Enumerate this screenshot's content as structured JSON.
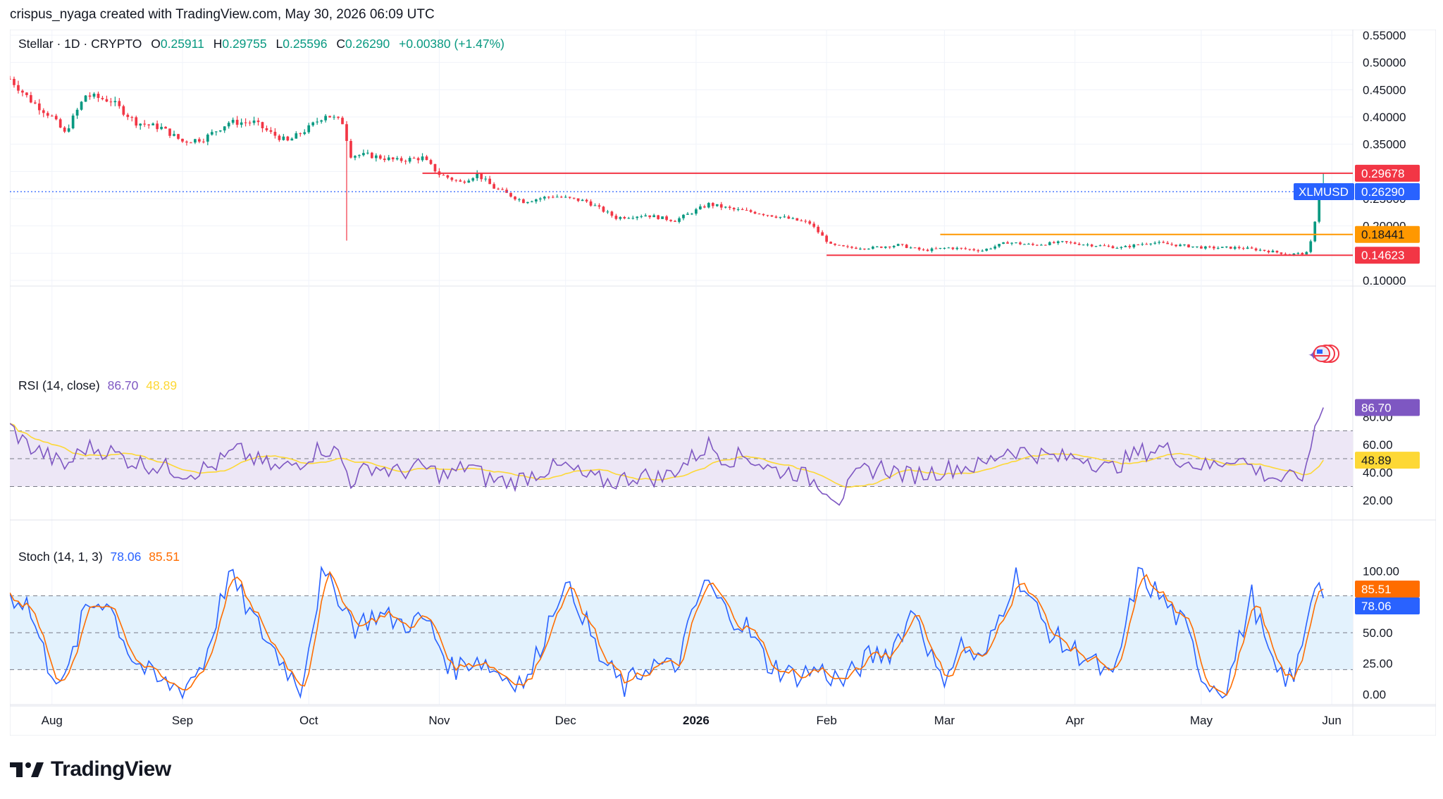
{
  "header": {
    "text": "crispus_nyaga created with TradingView.com, May 30, 2026 06:09 UTC"
  },
  "legend": {
    "symbol": "Stellar · 1D · CRYPTO",
    "o_label": "O",
    "o_value": "0.25911",
    "h_label": "H",
    "h_value": "0.29755",
    "l_label": "L",
    "l_value": "0.25596",
    "c_label": "C",
    "c_value": "0.26290",
    "change": "+0.00380 (+1.47%)"
  },
  "logo": {
    "text": "TradingView",
    "icon": "tradingview-logo-icon"
  },
  "colors": {
    "up": "#089981",
    "down": "#f23645",
    "rsi": "#7e57c2",
    "rsi_ma": "#fdd835",
    "stoch_k": "#2962ff",
    "stoch_d": "#ff6d00",
    "orange_level": "#ff9800",
    "price_badge": "#2962ff",
    "rsi_band": "#ede7f6",
    "stoch_band": "#e3f2fd"
  },
  "chart_data": [
    {
      "type": "candlestick",
      "title": "Stellar · 1D · CRYPTO",
      "symbol": "XLMUSD",
      "ylim": [
        0.1,
        0.55
      ],
      "y_ticks": [
        "0.55000",
        "0.50000",
        "0.45000",
        "0.40000",
        "0.35000",
        "0.30000",
        "0.25000",
        "0.20000",
        "0.15000",
        "0.10000"
      ],
      "x_ticks": [
        "Aug",
        "Sep",
        "Oct",
        "Nov",
        "Dec",
        "2026",
        "Feb",
        "Mar",
        "Apr",
        "May",
        "Jun"
      ],
      "anchor_points": [
        [
          "2025-07-22",
          0.47
        ],
        [
          "2025-07-27",
          0.43
        ],
        [
          "2025-08-01",
          0.4
        ],
        [
          "2025-08-04",
          0.37
        ],
        [
          "2025-08-09",
          0.44
        ],
        [
          "2025-08-15",
          0.43
        ],
        [
          "2025-08-21",
          0.39
        ],
        [
          "2025-08-27",
          0.38
        ],
        [
          "2025-09-01",
          0.355
        ],
        [
          "2025-09-06",
          0.36
        ],
        [
          "2025-09-12",
          0.39
        ],
        [
          "2025-09-18",
          0.39
        ],
        [
          "2025-09-22",
          0.37
        ],
        [
          "2025-09-26",
          0.355
        ],
        [
          "2025-10-01",
          0.38
        ],
        [
          "2025-10-05",
          0.405
        ],
        [
          "2025-10-09",
          0.39
        ],
        [
          "2025-10-11",
          0.33
        ],
        [
          "2025-10-15",
          0.33
        ],
        [
          "2025-10-22",
          0.32
        ],
        [
          "2025-10-28",
          0.325
        ],
        [
          "2025-11-01",
          0.295
        ],
        [
          "2025-11-06",
          0.28
        ],
        [
          "2025-11-10",
          0.295
        ],
        [
          "2025-11-14",
          0.27
        ],
        [
          "2025-11-21",
          0.245
        ],
        [
          "2025-11-28",
          0.255
        ],
        [
          "2025-12-06",
          0.245
        ],
        [
          "2025-12-13",
          0.215
        ],
        [
          "2025-12-20",
          0.22
        ],
        [
          "2025-12-27",
          0.21
        ],
        [
          "2026-01-04",
          0.24
        ],
        [
          "2026-01-10",
          0.23
        ],
        [
          "2026-01-15",
          0.225
        ],
        [
          "2026-01-22",
          0.215
        ],
        [
          "2026-01-28",
          0.205
        ],
        [
          "2026-02-02",
          0.165
        ],
        [
          "2026-02-06",
          0.16
        ],
        [
          "2026-02-12",
          0.16
        ],
        [
          "2026-02-18",
          0.165
        ],
        [
          "2026-02-24",
          0.155
        ],
        [
          "2026-03-02",
          0.16
        ],
        [
          "2026-03-10",
          0.155
        ],
        [
          "2026-03-16",
          0.17
        ],
        [
          "2026-03-22",
          0.165
        ],
        [
          "2026-03-29",
          0.17
        ],
        [
          "2026-04-05",
          0.165
        ],
        [
          "2026-04-12",
          0.16
        ],
        [
          "2026-04-19",
          0.17
        ],
        [
          "2026-04-25",
          0.165
        ],
        [
          "2026-05-02",
          0.16
        ],
        [
          "2026-05-10",
          0.16
        ],
        [
          "2026-05-16",
          0.155
        ],
        [
          "2026-05-22",
          0.148
        ],
        [
          "2026-05-26",
          0.15
        ],
        [
          "2026-05-27",
          0.17
        ],
        [
          "2026-05-28",
          0.21
        ],
        [
          "2026-05-29",
          0.259
        ],
        [
          "2026-05-30",
          0.2629
        ]
      ],
      "wick_spike": {
        "date": "2025-10-10",
        "low": 0.173
      },
      "levels": [
        {
          "name": "resistance",
          "value": 0.29678,
          "label": "0.29678",
          "from": "2025-10-28",
          "color": "#f23645"
        },
        {
          "name": "range-top",
          "value": 0.18441,
          "label": "0.18441",
          "from": "2026-02-28",
          "color": "#ff9800"
        },
        {
          "name": "support",
          "value": 0.14623,
          "label": "0.14623",
          "from": "2026-02-01",
          "color": "#f23645"
        }
      ],
      "last_price": {
        "value": 0.2629,
        "label": "0.26290",
        "symbol_label": "XLMUSD"
      }
    },
    {
      "type": "line",
      "title": "RSI (14, close)",
      "ylim": [
        10,
        95
      ],
      "y_ticks": [
        "80.00",
        "60.00",
        "40.00",
        "20.00"
      ],
      "bands": [
        30,
        50,
        70
      ],
      "series": [
        {
          "name": "RSI",
          "last": "86.70"
        },
        {
          "name": "RSI MA",
          "last": "48.89"
        }
      ],
      "anchor_points": [
        [
          "2025-07-22",
          73
        ],
        [
          "2025-07-26",
          60
        ],
        [
          "2025-07-31",
          52
        ],
        [
          "2025-08-04",
          44
        ],
        [
          "2025-08-09",
          58
        ],
        [
          "2025-08-14",
          56
        ],
        [
          "2025-08-20",
          48
        ],
        [
          "2025-08-27",
          44
        ],
        [
          "2025-09-02",
          40
        ],
        [
          "2025-09-08",
          44
        ],
        [
          "2025-09-14",
          56
        ],
        [
          "2025-09-19",
          48
        ],
        [
          "2025-09-24",
          42
        ],
        [
          "2025-09-29",
          48
        ],
        [
          "2025-10-04",
          58
        ],
        [
          "2025-10-08",
          54
        ],
        [
          "2025-10-11",
          34
        ],
        [
          "2025-10-16",
          45
        ],
        [
          "2025-10-22",
          40
        ],
        [
          "2025-10-28",
          44
        ],
        [
          "2025-11-03",
          37
        ],
        [
          "2025-11-08",
          46
        ],
        [
          "2025-11-12",
          36
        ],
        [
          "2025-11-18",
          33
        ],
        [
          "2025-11-26",
          42
        ],
        [
          "2025-12-01",
          44
        ],
        [
          "2025-12-06",
          36
        ],
        [
          "2025-12-12",
          33
        ],
        [
          "2025-12-18",
          38
        ],
        [
          "2025-12-24",
          36
        ],
        [
          "2025-12-30",
          48
        ],
        [
          "2026-01-04",
          60
        ],
        [
          "2026-01-08",
          50
        ],
        [
          "2026-01-13",
          52
        ],
        [
          "2026-01-19",
          42
        ],
        [
          "2026-01-25",
          40
        ],
        [
          "2026-01-31",
          31
        ],
        [
          "2026-02-04",
          21
        ],
        [
          "2026-02-09",
          40
        ],
        [
          "2026-02-14",
          44
        ],
        [
          "2026-02-20",
          38
        ],
        [
          "2026-02-26",
          40
        ],
        [
          "2026-03-04",
          44
        ],
        [
          "2026-03-10",
          45
        ],
        [
          "2026-03-16",
          57
        ],
        [
          "2026-03-22",
          54
        ],
        [
          "2026-03-28",
          50
        ],
        [
          "2026-04-03",
          52
        ],
        [
          "2026-04-09",
          42
        ],
        [
          "2026-04-16",
          54
        ],
        [
          "2026-04-22",
          58
        ],
        [
          "2026-04-27",
          48
        ],
        [
          "2026-05-03",
          44
        ],
        [
          "2026-05-09",
          52
        ],
        [
          "2026-05-15",
          40
        ],
        [
          "2026-05-21",
          34
        ],
        [
          "2026-05-26",
          40
        ],
        [
          "2026-05-28",
          75
        ],
        [
          "2026-05-30",
          86.7
        ]
      ]
    },
    {
      "type": "line",
      "title": "Stoch (14, 1, 3)",
      "ylim": [
        -5,
        105
      ],
      "y_ticks": [
        "100.00",
        "50.00",
        "25.00",
        "0.00"
      ],
      "bands": [
        20,
        50,
        80
      ],
      "series": [
        {
          "name": "%K",
          "last": "78.06"
        },
        {
          "name": "%D",
          "last": "85.51"
        }
      ],
      "anchor_points": [
        [
          "2025-07-22",
          80
        ],
        [
          "2025-07-26",
          75
        ],
        [
          "2025-07-31",
          25
        ],
        [
          "2025-08-04",
          8
        ],
        [
          "2025-08-09",
          70
        ],
        [
          "2025-08-14",
          78
        ],
        [
          "2025-08-20",
          30
        ],
        [
          "2025-08-26",
          10
        ],
        [
          "2025-09-01",
          5
        ],
        [
          "2025-09-06",
          25
        ],
        [
          "2025-09-12",
          98
        ],
        [
          "2025-09-18",
          60
        ],
        [
          "2025-09-24",
          30
        ],
        [
          "2025-09-29",
          5
        ],
        [
          "2025-10-04",
          95
        ],
        [
          "2025-10-08",
          82
        ],
        [
          "2025-10-12",
          55
        ],
        [
          "2025-10-17",
          65
        ],
        [
          "2025-10-23",
          58
        ],
        [
          "2025-10-29",
          60
        ],
        [
          "2025-11-04",
          20
        ],
        [
          "2025-11-10",
          30
        ],
        [
          "2025-11-16",
          15
        ],
        [
          "2025-11-22",
          10
        ],
        [
          "2025-11-30",
          88
        ],
        [
          "2025-12-04",
          75
        ],
        [
          "2025-12-09",
          30
        ],
        [
          "2025-12-15",
          5
        ],
        [
          "2025-12-21",
          25
        ],
        [
          "2025-12-27",
          20
        ],
        [
          "2026-01-03",
          92
        ],
        [
          "2026-01-08",
          68
        ],
        [
          "2026-01-13",
          55
        ],
        [
          "2026-01-18",
          25
        ],
        [
          "2026-01-24",
          15
        ],
        [
          "2026-01-30",
          20
        ],
        [
          "2026-02-05",
          10
        ],
        [
          "2026-02-11",
          30
        ],
        [
          "2026-02-16",
          35
        ],
        [
          "2026-02-22",
          70
        ],
        [
          "2026-02-28",
          10
        ],
        [
          "2026-03-05",
          40
        ],
        [
          "2026-03-10",
          25
        ],
        [
          "2026-03-18",
          100
        ],
        [
          "2026-03-24",
          60
        ],
        [
          "2026-03-29",
          40
        ],
        [
          "2026-04-04",
          30
        ],
        [
          "2026-04-10",
          10
        ],
        [
          "2026-04-16",
          98
        ],
        [
          "2026-04-21",
          80
        ],
        [
          "2026-04-27",
          55
        ],
        [
          "2026-05-02",
          10
        ],
        [
          "2026-05-07",
          5
        ],
        [
          "2026-05-13",
          80
        ],
        [
          "2026-05-18",
          20
        ],
        [
          "2026-05-23",
          10
        ],
        [
          "2026-05-28",
          95
        ],
        [
          "2026-05-30",
          78.06
        ]
      ]
    }
  ],
  "overlays": {
    "rsi_badge": "86.70",
    "rsi_ma_badge": "48.89",
    "stoch_d_badge": "85.51",
    "stoch_k_badge": "78.06"
  }
}
